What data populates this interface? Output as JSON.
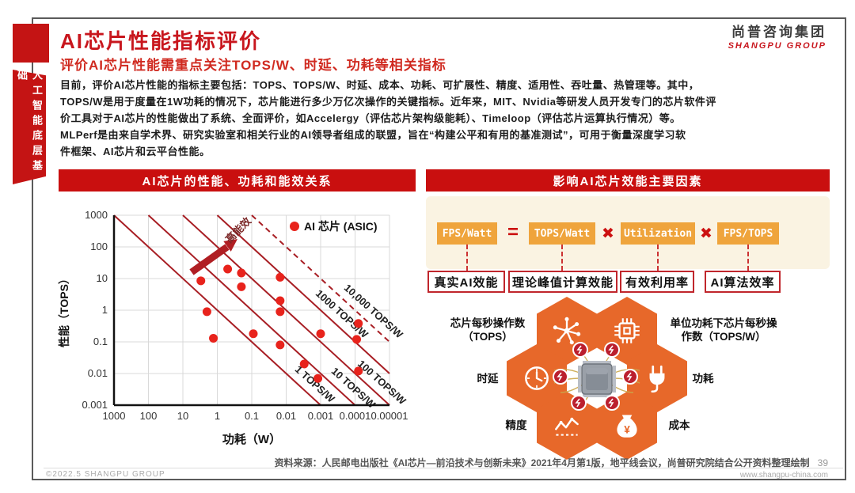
{
  "sidebar": {
    "tab_label": "人工智能底层基础"
  },
  "header": {
    "title": "AI芯片性能指标评价",
    "subtitle": "评价AI芯片性能需重点关注TOPS/W、时延、功耗等相关指标",
    "logo_cn": "尚普咨询集团",
    "logo_en": "SHANGPU GROUP"
  },
  "intro": {
    "text": "目前，评价AI芯片性能的指标主要包括：TOPS、TOPS/W、时延、成本、功耗、可扩展性、精度、适用性、吞吐量、热管理等。其中，\nTOPS/W是用于度量在1W功耗的情况下，芯片能进行多少万亿次操作的关键指标。近年来，MIT、Nvidia等研发人员开发专门的芯片软件评\n价工具对于AI芯片的性能做出了系统、全面评价，如Accelergy（评估芯片架构级能耗）、Timeloop（评估芯片运算执行情况）等。\nMLPerf是由来自学术界、研究实验室和相关行业的AI领导者组成的联盟，旨在“构建公平和有用的基准测试”，可用于衡量深度学习软\n件框架、AI芯片和云平台性能。"
  },
  "left_panel": {
    "header": "AI芯片的性能、功耗和能效关系"
  },
  "right_panel": {
    "header": "影响AI芯片效能主要因素",
    "formula": {
      "terms": [
        "FPS/Watt",
        "TOPS/Watt",
        "Utilization",
        "FPS/TOPS"
      ],
      "operators": [
        "=",
        "✖",
        "✖"
      ],
      "captions": [
        "真实AI效能",
        "理论峰值计算效能",
        "有效利用率",
        "AI算法效率"
      ]
    },
    "hexagons": [
      {
        "icon": "neural-network-icon",
        "label": "芯片每秒操作数\n（TOPS）"
      },
      {
        "icon": "chip-icon",
        "label": "单位功耗下芯片每秒操\n作数（TOPS/W）"
      },
      {
        "icon": "clock-icon",
        "label": "时延"
      },
      {
        "icon": "plug-icon",
        "label": "功耗"
      },
      {
        "icon": "chart-icon",
        "label": "精度"
      },
      {
        "icon": "money-bag-icon",
        "label": "成本"
      }
    ]
  },
  "chart_data": {
    "type": "scatter",
    "title": "AI芯片的性能、功耗和能效关系",
    "xlabel": "功耗（W）",
    "ylabel": "性能（TOPS）",
    "x_scale": "log-reversed",
    "y_scale": "log",
    "x_tick_labels": [
      "1000",
      "100",
      "10",
      "1",
      "0.1",
      "0.01",
      "0.001",
      "0.0001",
      "0.00001"
    ],
    "y_tick_labels": [
      "1000",
      "100",
      "10",
      "1",
      "0.1",
      "0.01",
      "0.001"
    ],
    "x_range": [
      1000,
      1e-05
    ],
    "y_range": [
      1000,
      0.001
    ],
    "grid": true,
    "legend": [
      {
        "label": "AI 芯片 (ASIC)",
        "marker": "dot",
        "color": "#e8231c"
      }
    ],
    "series": [
      {
        "name": "AI 芯片 (ASIC)",
        "color": "#e8231c",
        "points": [
          [
            3,
            8.5
          ],
          [
            0.5,
            20
          ],
          [
            0.2,
            15
          ],
          [
            0.2,
            5.5
          ],
          [
            2,
            0.9
          ],
          [
            1.3,
            0.13
          ],
          [
            0.015,
            11
          ],
          [
            0.015,
            2
          ],
          [
            0.015,
            0.9
          ],
          [
            0.09,
            0.18
          ],
          [
            0.015,
            0.08
          ],
          [
            0.003,
            0.02
          ],
          [
            0.0012,
            0.007
          ],
          [
            0.001,
            0.18
          ],
          [
            8e-05,
            0.38
          ],
          [
            9e-05,
            0.12
          ],
          [
            8e-05,
            0.012
          ]
        ]
      }
    ],
    "ref_lines": [
      {
        "label": "1 TOPS/W",
        "tops_per_watt": 1,
        "dashed": false,
        "label_at_power": 0.008
      },
      {
        "label": "10 TOPS/W",
        "tops_per_watt": 10,
        "dashed": false,
        "label_at_power": 0.0007
      },
      {
        "label": "100 TOPS/W",
        "tops_per_watt": 100,
        "dashed": false,
        "label_at_power": 0.00012
      },
      {
        "label": "1000 TOPS/W",
        "tops_per_watt": 1000,
        "dashed": false,
        "label_at_power": 0.002
      },
      {
        "label": "10,000 TOPS/W",
        "tops_per_watt": 10000,
        "dashed": true,
        "label_at_power": 0.0003
      }
    ],
    "annotation": {
      "arrow_label": "高能效"
    },
    "colors": {
      "ref_line": "#a81e24",
      "arrow": "#b01e23",
      "annotation_text": "#7b2727",
      "grid": "#d9d9d9",
      "axis": "#111111"
    }
  },
  "footer": {
    "source": "资料来源：人民邮电出版社《AI芯片—前沿技术与创新未来》2021年4月第1版，地平线会议，尚普研究院结合公开资料整理绘制",
    "page_number": "39",
    "copyright": "©2022.5  SHANGPU GROUP",
    "website": "www.shangpu-china.com"
  },
  "colors": {
    "brand_red": "#c8161d",
    "bar_red": "#c90f0f",
    "hex_orange": "#e7682a",
    "term_orange": "#efa43c",
    "cream": "#faf3e2",
    "badge_red": "#bb1f2e"
  }
}
